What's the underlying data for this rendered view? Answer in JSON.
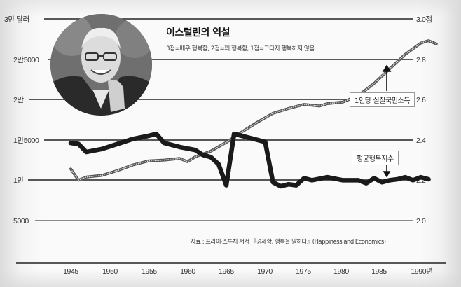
{
  "chart_data": {
    "type": "line",
    "title": "이스털린의 역설",
    "subtitle": "3점=매우 행복함, 2점=꽤 행복함, 1점=그다지 행복하지 않음",
    "source": "자료 : 프라이·스투처 저서 『경제학, 행복을 말하다』(Happiness and Economics)",
    "x": [
      1945,
      1950,
      1955,
      1960,
      1965,
      1970,
      1975,
      1980,
      1985,
      1990
    ],
    "x_tick_labels": [
      "1945",
      "1950",
      "1955",
      "1960",
      "1965",
      "1970",
      "1975",
      "1980",
      "1985",
      "1990년"
    ],
    "y_left": {
      "label": "1인당 실질국민소득 (달러)",
      "ticks": [
        5000,
        10000,
        15000,
        20000,
        25000,
        30000
      ],
      "tick_labels": [
        "5000",
        "1만",
        "1만5000",
        "2만",
        "2만5000",
        "3만 달러"
      ],
      "range": [
        5000,
        30000
      ]
    },
    "y_right": {
      "label": "평균행복지수 (점)",
      "ticks": [
        2.0,
        2.2,
        2.4,
        2.6,
        2.8,
        3.0
      ],
      "tick_labels": [
        "2.0",
        "2.2",
        "2.4",
        "2.6",
        "2.8",
        "3.0점"
      ],
      "range": [
        2.0,
        3.0
      ]
    },
    "grid": true,
    "series": [
      {
        "name": "1인당 실질국민소득",
        "axis": "left",
        "style": "thin dotted gray",
        "points": [
          [
            1945,
            11400
          ],
          [
            1946,
            10000
          ],
          [
            1947,
            10400
          ],
          [
            1949,
            10600
          ],
          [
            1951,
            11200
          ],
          [
            1953,
            11900
          ],
          [
            1955,
            12400
          ],
          [
            1957,
            12500
          ],
          [
            1959,
            12700
          ],
          [
            1960,
            12300
          ],
          [
            1961,
            12900
          ],
          [
            1963,
            13600
          ],
          [
            1965,
            14700
          ],
          [
            1967,
            16000
          ],
          [
            1969,
            17200
          ],
          [
            1971,
            18300
          ],
          [
            1973,
            18900
          ],
          [
            1975,
            19400
          ],
          [
            1977,
            19200
          ],
          [
            1978,
            19500
          ],
          [
            1980,
            19700
          ],
          [
            1982,
            20500
          ],
          [
            1984,
            22000
          ],
          [
            1986,
            23800
          ],
          [
            1988,
            25600
          ],
          [
            1990,
            27000
          ],
          [
            1991,
            27300
          ],
          [
            1992,
            26900
          ]
        ]
      },
      {
        "name": "평균행복지수",
        "axis": "right",
        "style": "thick black",
        "points": [
          [
            1945,
            2.385
          ],
          [
            1946,
            2.38
          ],
          [
            1947,
            2.34
          ],
          [
            1949,
            2.355
          ],
          [
            1951,
            2.38
          ],
          [
            1953,
            2.405
          ],
          [
            1955,
            2.42
          ],
          [
            1956,
            2.43
          ],
          [
            1957,
            2.385
          ],
          [
            1959,
            2.365
          ],
          [
            1961,
            2.35
          ],
          [
            1962,
            2.325
          ],
          [
            1963,
            2.315
          ],
          [
            1964,
            2.28
          ],
          [
            1965,
            2.175
          ],
          [
            1966,
            2.43
          ],
          [
            1968,
            2.41
          ],
          [
            1970,
            2.39
          ],
          [
            1971,
            2.19
          ],
          [
            1972,
            2.17
          ],
          [
            1973,
            2.18
          ],
          [
            1974,
            2.175
          ],
          [
            1975,
            2.21
          ],
          [
            1976,
            2.2
          ],
          [
            1978,
            2.215
          ],
          [
            1980,
            2.2
          ],
          [
            1982,
            2.2
          ],
          [
            1983,
            2.185
          ],
          [
            1984,
            2.21
          ],
          [
            1985,
            2.19
          ],
          [
            1986,
            2.2
          ],
          [
            1987,
            2.205
          ],
          [
            1988,
            2.215
          ],
          [
            1989,
            2.2
          ],
          [
            1990,
            2.215
          ],
          [
            1991,
            2.205
          ]
        ]
      }
    ],
    "annotations": [
      {
        "text": "1인당 실질국민소득",
        "arrow_to": [
          1986,
          23800
        ]
      },
      {
        "text": "평균행복지수",
        "arrow_to": [
          1985,
          2.2
        ]
      }
    ],
    "legend_position": "inline callouts"
  },
  "labels": {
    "title": "이스털린의 역설",
    "subtitle": "3점=매우 행복함, 2점=꽤 행복함, 1점=그다지 행복하지 않음",
    "income_callout": "1인당 실질국민소득",
    "happiness_callout": "평균행복지수",
    "source": "자료 : 프라이·스투처 저서 『경제학, 행복을 말하다』(Happiness and Economics)",
    "left_ticks": [
      "3만 달러",
      "2만5000",
      "2만",
      "1만5000",
      "1만",
      "5000"
    ],
    "right_ticks": [
      "3.0점",
      "2.8",
      "2.6",
      "2.4",
      "2.2",
      "2.0"
    ],
    "x_ticks": [
      "1945",
      "1950",
      "1955",
      "1960",
      "1965",
      "1970",
      "1975",
      "1980",
      "1985",
      "1990년"
    ]
  },
  "photo": {
    "alt": "portrait-photo"
  }
}
